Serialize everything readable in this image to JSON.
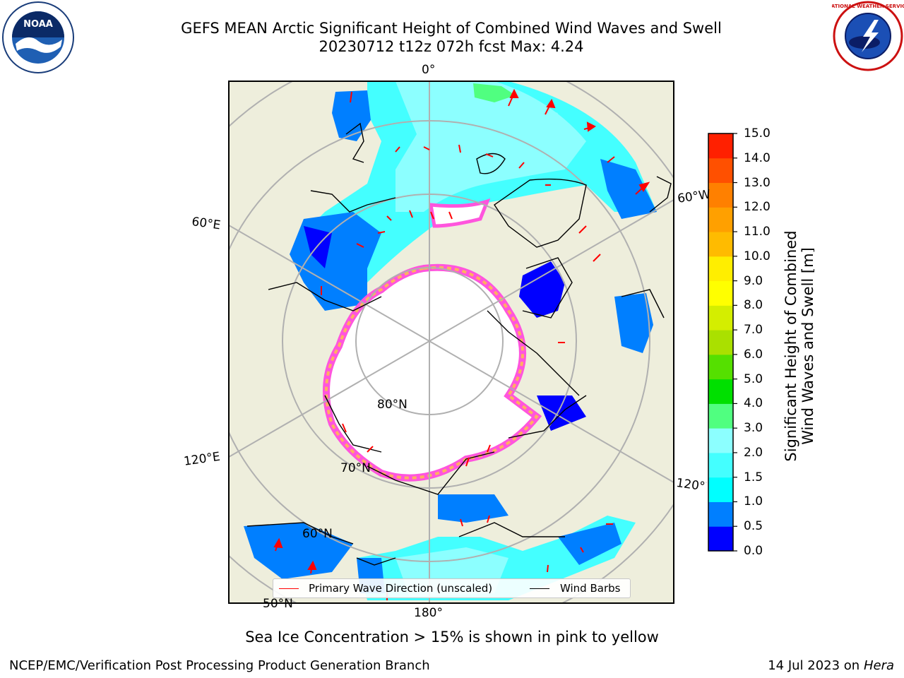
{
  "title": {
    "line1": "GEFS MEAN Arctic Significant Height of Combined Wind Waves and Swell",
    "line2": "20230712 t12z 072h fcst   Max: 4.24"
  },
  "logos": {
    "noaa_icon": "noaa-logo",
    "noaa_text": "NOAA",
    "nws_icon": "national-weather-service-logo",
    "nws_text": "NATIONAL WEATHER SERVICE"
  },
  "map": {
    "projection": "north-polar-stereographic",
    "labels": {
      "lon_0": "0°",
      "lon_60w": "60°W",
      "lon_60e": "60°E",
      "lon_120e": "120°E",
      "lon_120w": "120°W",
      "lon_180": "180°",
      "lat_80": "80°N",
      "lat_70": "70°N",
      "lat_60": "60°N",
      "lat_50": "50°N"
    },
    "colors": {
      "land": "#eeeedc",
      "ice": "#ffffff",
      "ice_edge_pink": "#ff55dd",
      "ice_edge_orange": "#ffb060",
      "ocean_low": "#0000ff",
      "ocean_mid": "#007fff",
      "ocean_high": "#00ffff",
      "ocean_pale": "#8cffff",
      "arrow": "#ff0000"
    }
  },
  "colorbar": {
    "title_line1": "Significant Height of Combined",
    "title_line2": "Wind Waves and Swell [m]",
    "ticks": [
      "15.0",
      "14.0",
      "13.0",
      "12.0",
      "11.0",
      "10.0",
      "9.0",
      "8.0",
      "7.0",
      "6.0",
      "5.0",
      "4.0",
      "3.0",
      "2.0",
      "1.5",
      "1.0",
      "0.5",
      "0.0"
    ],
    "colors": [
      "#0000ff",
      "#007fff",
      "#00ffff",
      "#44ffff",
      "#8cffff",
      "#50ff80",
      "#00e000",
      "#55e000",
      "#aae000",
      "#d4ee00",
      "#ffff00",
      "#ffee00",
      "#ffbb00",
      "#ffa000",
      "#ff8000",
      "#ff5000",
      "#ff2000",
      "#ff0000"
    ]
  },
  "legend": {
    "primary_wave": "Primary Wave Direction (unscaled)",
    "wind_barbs": "Wind Barbs"
  },
  "caption": "Sea Ice Concentration > 15% is shown in pink to yellow",
  "footer": {
    "credit": "NCEP/EMC/Verification Post Processing Product Generation Branch",
    "date_prefix": "14 Jul 2023 on ",
    "date_host": "Hera"
  }
}
